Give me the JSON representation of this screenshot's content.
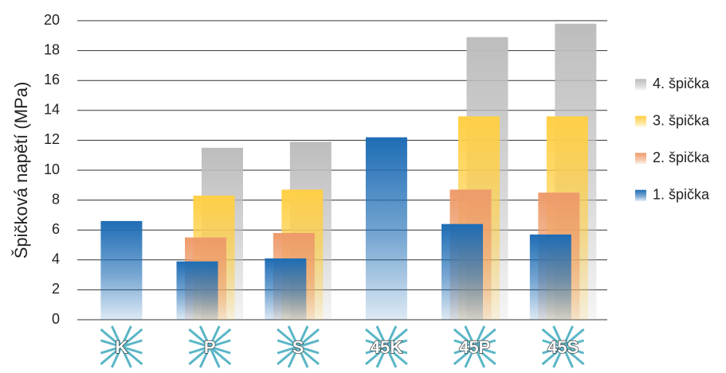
{
  "chart_data": {
    "type": "bar",
    "y_label": "Špičková napětí (MPa)",
    "categories": [
      "K",
      "P",
      "S",
      "45K",
      "45P",
      "45S"
    ],
    "series": [
      {
        "name": "1. špička",
        "color": "#1e6db5",
        "values": [
          6.6,
          3.9,
          4.1,
          12.2,
          6.4,
          5.7
        ]
      },
      {
        "name": "2. špička",
        "color": "#ee9b6a",
        "values": [
          null,
          5.5,
          5.8,
          null,
          8.7,
          8.5
        ]
      },
      {
        "name": "3. špička",
        "color": "#ffcf45",
        "values": [
          null,
          8.3,
          8.7,
          null,
          13.6,
          13.6
        ]
      },
      {
        "name": "4. špička",
        "color": "#bdbdbd",
        "values": [
          null,
          11.5,
          11.9,
          null,
          18.9,
          19.8
        ]
      }
    ],
    "ylim": [
      0,
      20
    ],
    "yticks": [
      0,
      2,
      4,
      6,
      8,
      10,
      12,
      14,
      16,
      18,
      20
    ],
    "grid": true
  }
}
